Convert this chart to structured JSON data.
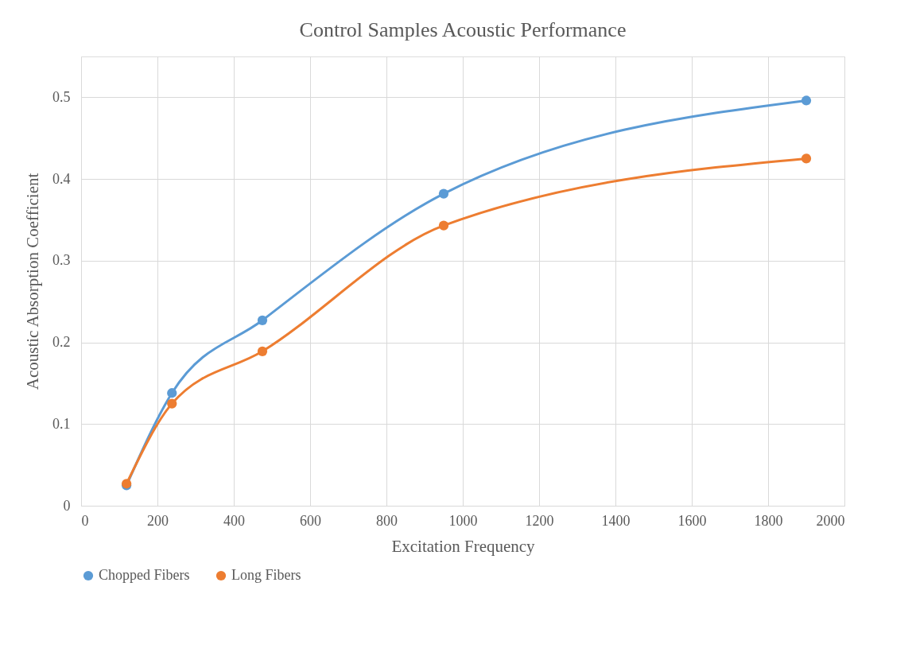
{
  "chart_data": {
    "type": "line",
    "title": "Control Samples Acoustic Performance",
    "xlabel": "Excitation Frequency",
    "ylabel": "Acoustic Absorption Coefficient",
    "x": [
      119,
      238,
      475,
      950,
      1900
    ],
    "series": [
      {
        "name": "Chopped Fibers",
        "color": "#5b9bd5",
        "values": [
          0.025,
          0.138,
          0.227,
          0.382,
          0.496
        ]
      },
      {
        "name": "Long Fibers",
        "color": "#ed7d31",
        "values": [
          0.027,
          0.125,
          0.189,
          0.343,
          0.425
        ]
      }
    ],
    "xlim": [
      0,
      2000
    ],
    "xticks": [
      0,
      200,
      400,
      600,
      800,
      1000,
      1200,
      1400,
      1600,
      1800,
      2000
    ],
    "ylim": [
      0,
      0.55
    ],
    "yticks": [
      0,
      0.1,
      0.2,
      0.3,
      0.4,
      0.5
    ],
    "grid": true,
    "legend": "bottom",
    "marker": "circle",
    "line_style": "solid"
  }
}
